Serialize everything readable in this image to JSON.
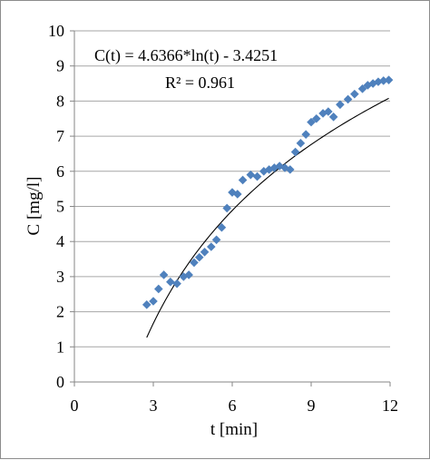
{
  "chart_data": {
    "type": "scatter",
    "title": "",
    "xlabel": "t [min]",
    "ylabel": "C [mg/l]",
    "xlim": [
      0,
      12
    ],
    "ylim": [
      0,
      10
    ],
    "x_ticks": [
      0,
      3,
      6,
      9,
      12
    ],
    "y_ticks": [
      0,
      1,
      2,
      3,
      4,
      5,
      6,
      7,
      8,
      9,
      10
    ],
    "grid": "horizontal",
    "legend": "none",
    "colors": {
      "marker": "#4f81bd",
      "trendline": "#000000",
      "gridline": "#a6a6a6",
      "axis": "#868686"
    },
    "series": [
      {
        "marker": "diamond",
        "x": [
          2.75,
          3.0,
          3.2,
          3.4,
          3.65,
          3.9,
          4.15,
          4.35,
          4.55,
          4.75,
          4.95,
          5.2,
          5.4,
          5.6,
          5.8,
          6.0,
          6.2,
          6.4,
          6.7,
          6.95,
          7.2,
          7.4,
          7.6,
          7.8,
          8.0,
          8.2,
          8.4,
          8.6,
          8.8,
          9.0,
          9.2,
          9.45,
          9.65,
          9.85,
          10.1,
          10.4,
          10.65,
          10.95,
          11.15,
          11.35,
          11.55,
          11.75,
          11.95
        ],
        "y": [
          2.2,
          2.3,
          2.65,
          3.05,
          2.85,
          2.8,
          3.0,
          3.05,
          3.4,
          3.55,
          3.7,
          3.85,
          4.05,
          4.4,
          4.95,
          5.4,
          5.35,
          5.75,
          5.9,
          5.85,
          6.0,
          6.05,
          6.1,
          6.15,
          6.1,
          6.05,
          6.55,
          6.8,
          7.05,
          7.4,
          7.5,
          7.65,
          7.7,
          7.55,
          7.9,
          8.05,
          8.2,
          8.35,
          8.45,
          8.5,
          8.55,
          8.58,
          8.6
        ]
      }
    ],
    "trendline": {
      "type": "logarithmic",
      "a": 4.6366,
      "b": -3.4251,
      "x_range": [
        2.75,
        11.95
      ]
    },
    "annotations": {
      "equation": "C(t) = 4.6366*ln(t) - 3.4251",
      "r_squared": "R² = 0.961"
    }
  }
}
